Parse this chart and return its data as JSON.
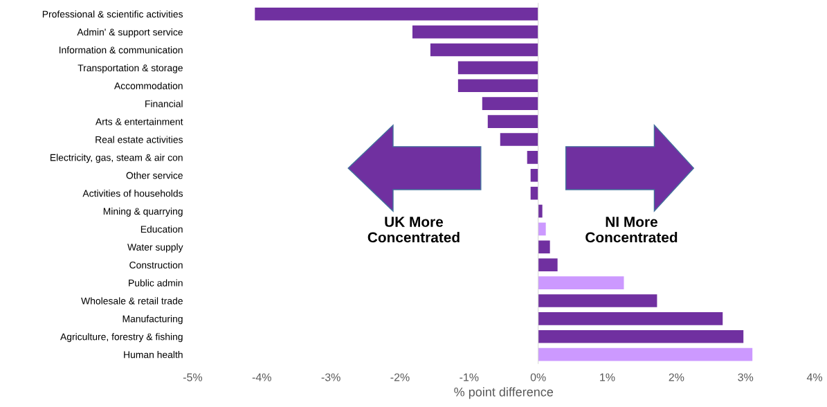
{
  "chart_data": {
    "type": "bar",
    "orientation": "horizontal",
    "xlabel": "% point difference",
    "categories": [
      "Professional & scientific activities",
      "Admin' & support service",
      "Information & communication",
      "Transportation & storage",
      "Accommodation",
      "Financial",
      "Arts & entertainment",
      "Real estate activities",
      "Electricity, gas, steam & air con",
      "Other service",
      "Activities of households",
      "Mining & quarrying",
      "Education",
      "Water supply",
      "Construction",
      "Public admin",
      "Wholesale & retail trade",
      "Manufacturing",
      "Agriculture, forestry & fishing",
      "Human health"
    ],
    "values": [
      -4.1,
      -1.82,
      -1.56,
      -1.16,
      -1.16,
      -0.81,
      -0.73,
      -0.55,
      -0.16,
      -0.11,
      -0.11,
      0.06,
      0.11,
      0.17,
      0.28,
      1.24,
      1.72,
      2.67,
      2.97,
      3.1
    ],
    "colors": [
      "#7030a0",
      "#7030a0",
      "#7030a0",
      "#7030a0",
      "#7030a0",
      "#7030a0",
      "#7030a0",
      "#7030a0",
      "#7030a0",
      "#7030a0",
      "#7030a0",
      "#7030a0",
      "#cc99ff",
      "#7030a0",
      "#7030a0",
      "#cc99ff",
      "#7030a0",
      "#7030a0",
      "#7030a0",
      "#cc99ff"
    ],
    "xlim": [
      -5,
      4
    ],
    "xticks": [
      {
        "value": -5,
        "label": "-5%"
      },
      {
        "value": -4,
        "label": "-4%"
      },
      {
        "value": -3,
        "label": "-3%"
      },
      {
        "value": -2,
        "label": "-2%"
      },
      {
        "value": -1,
        "label": "-1%"
      },
      {
        "value": 0,
        "label": "0%"
      },
      {
        "value": 1,
        "label": "1%"
      },
      {
        "value": 2,
        "label": "2%"
      },
      {
        "value": 3,
        "label": "3%"
      },
      {
        "value": 4,
        "label": "4%"
      }
    ],
    "annotations": [
      "UK More\nConcentrated",
      "NI More\nConcentrated"
    ]
  }
}
